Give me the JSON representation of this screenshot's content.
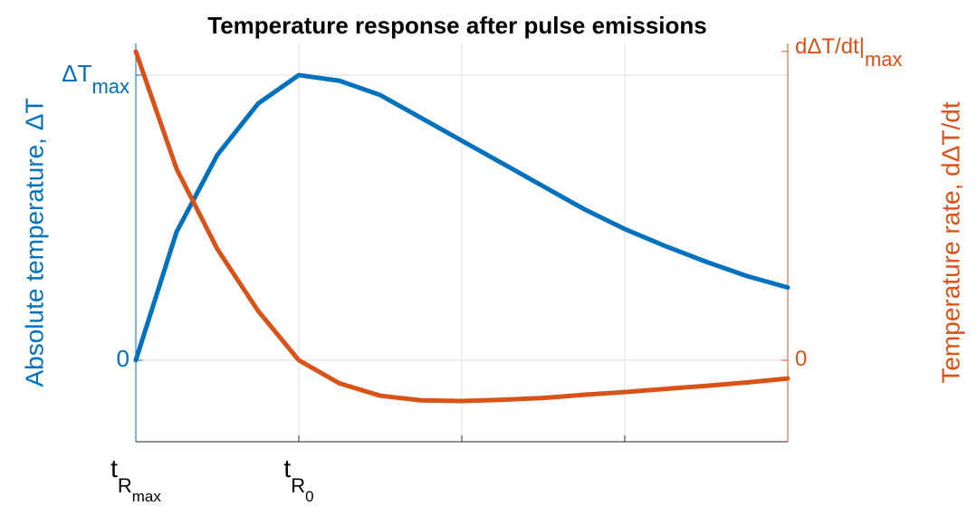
{
  "chart_data": {
    "type": "line",
    "title": "Temperature response after pulse emissions",
    "ylabel": "Absolute temperature, ΔT",
    "y2label": "Temperature rate, dΔT/dt",
    "x": [
      0,
      0.25,
      0.5,
      0.75,
      1,
      1.25,
      1.5,
      1.75,
      2,
      2.25,
      2.5,
      2.75,
      3,
      3.25,
      3.5,
      3.75,
      4
    ],
    "series": [
      {
        "name": "ΔT",
        "color": "#0072BD",
        "axis": "y",
        "values": [
          0,
          0.45,
          0.72,
          0.9,
          1.0,
          0.98,
          0.93,
          0.85,
          0.77,
          0.69,
          0.61,
          0.53,
          0.46,
          0.4,
          0.345,
          0.295,
          0.255
        ]
      },
      {
        "name": "dΔT/dt",
        "color": "#D95319",
        "axis": "y2",
        "values": [
          1.0,
          0.62,
          0.36,
          0.16,
          0.0,
          -0.075,
          -0.115,
          -0.13,
          -0.132,
          -0.128,
          -0.122,
          -0.112,
          -0.103,
          -0.093,
          -0.083,
          -0.072,
          -0.059
        ]
      }
    ],
    "xlim": [
      0,
      4
    ],
    "xticks": [
      {
        "value": 0,
        "label": "t",
        "sub": "R",
        "subsub": "max"
      },
      {
        "value": 1,
        "label": "t",
        "sub": "R",
        "subsub": "0"
      },
      2,
      3
    ],
    "ylim": [
      -0.286,
      1.111
    ],
    "yticks": [
      {
        "value": 0,
        "label": "0"
      },
      {
        "value": 1,
        "label": "ΔT",
        "sub": "max"
      }
    ],
    "y2lim": [
      -0.264,
      1.026
    ],
    "y2ticks": [
      {
        "value": 0,
        "label": "0"
      },
      {
        "value": 1,
        "label": "dΔT/dt|",
        "sub": "max"
      }
    ],
    "grid": true
  }
}
